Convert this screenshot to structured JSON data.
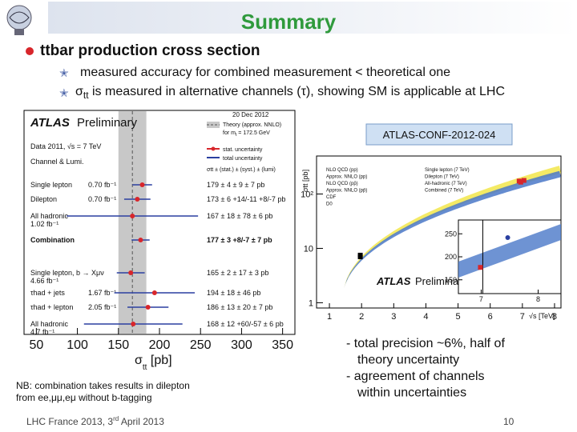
{
  "header": {
    "title": "Summary"
  },
  "bullet": {
    "text": "ttbar production cross section",
    "items": [
      {
        "text": "measured accuracy for combined measurement < theoretical one"
      },
      {
        "symbol": "σ",
        "sub": "tt",
        "text": " is measured in alternative channels (τ), showing SM is applicable at LHC"
      }
    ]
  },
  "atlas_plot": {
    "title": "ATLAS",
    "subtitle": "Preliminary",
    "date": "20 Dec 2012",
    "theory_label": "Theory (approx. NNLO)",
    "theory_mass": {
      "pre": "for m",
      "sub": "t",
      "post": " = 172.5 GeV"
    },
    "data_label": "Data 2011, √s = 7 TeV",
    "stat_label": "stat. uncertainty",
    "total_label": "total uncertainty",
    "column_header": "Channel & Lumi.",
    "result_header": "σtt ± (stat.) ± (syst.) ± (lumi)",
    "theory": {
      "value": 167,
      "error": 17
    },
    "rows": [
      {
        "channel": "Single lepton",
        "lumi": "0.70 fb⁻¹",
        "value": 179,
        "error": 12,
        "result": "179 ± 4 ± 9 ± 7 pb"
      },
      {
        "channel": "Dilepton",
        "lumi": "0.70 fb⁻¹",
        "value": 173,
        "error": 16,
        "result": "173 ± 6 +14/-11 +8/-7 pb"
      },
      {
        "channel": "All hadronic",
        "lumi": "1.02 fb⁻¹",
        "value": 167,
        "error": 80,
        "result": "167 ± 18 ± 78 ± 6 pb"
      },
      {
        "channel": "Combination",
        "lumi": "",
        "value": 177,
        "error": 11,
        "result": "177 ± 3 +8/-7 ± 7 pb"
      },
      {
        "channel": "Single lepton, b → Xμν",
        "lumi": "4.66 fb⁻¹",
        "value": 165,
        "error": 17,
        "result": "165 ± 2 ± 17 ± 3 pb"
      },
      {
        "channel": "τhad + jets",
        "lumi": "1.67 fb⁻¹",
        "value": 194,
        "error": 49,
        "result": "194 ± 18 ± 46 pb"
      },
      {
        "channel": "τhad + lepton",
        "lumi": "2.05 fb⁻¹",
        "value": 186,
        "error": 25,
        "result": "186 ± 13 ± 20 ± 7 pb"
      },
      {
        "channel": "All hadronic",
        "lumi": "4.7 fb⁻¹",
        "value": 168,
        "error": 60,
        "result": "168 ± 12 +60/-57 ± 6 pb"
      }
    ],
    "xlim": [
      35,
      365
    ],
    "xticks": [
      50,
      100,
      150,
      200,
      250,
      300,
      350
    ],
    "xlabel": {
      "symbol": "σ",
      "sub": "tt",
      "unit": " [pb]"
    }
  },
  "right_plot": {
    "tag": "ATLAS-CONF-2012-024",
    "ylabel": "σtt [pb]",
    "xlabel": "√s [TeV]",
    "xlim": [
      0.6,
      8.2
    ],
    "xticks": [
      1,
      2,
      3,
      4,
      5,
      6,
      7,
      8
    ],
    "ylim": [
      0.8,
      500
    ],
    "yticks": [
      {
        "value": 1,
        "label": "1"
      },
      {
        "value": 10,
        "label": "10"
      },
      {
        "value": 100,
        "label": "10²"
      }
    ],
    "legend": [
      "NLO QCD (pp)",
      "Approx. NNLO (pp)",
      "NLO QCD (pp̄)",
      "Approx. NNLO (pp̄)",
      "CDF",
      "D0"
    ],
    "legend2": [
      "Single lepton (7 TeV)",
      "Dilepton (7 TeV)",
      "All-hadronic (7 TeV)",
      "Combined (7 TeV)"
    ],
    "atlas": "ATLAS",
    "preliminary": "Preliminary",
    "inset": {
      "xlim": [
        6.6,
        8.4
      ],
      "xticks": [
        7,
        8
      ],
      "ylim": [
        120,
        280
      ],
      "yticks": [
        150,
        200,
        250
      ]
    }
  },
  "note": {
    "lines": [
      "NB: combination takes results in dilepton",
      "from ee,μμ,eμ without b-tagging"
    ]
  },
  "conclusions": [
    {
      "text": "- total precision ~6%, half of",
      "indent": false
    },
    {
      "text": "theory uncertainty",
      "indent": true
    },
    {
      "text": "- agreement of channels",
      "indent": false
    },
    {
      "text": "within uncertainties",
      "indent": true
    }
  ],
  "footer": {
    "pre": "LHC France 2013, 3",
    "sup": "rd",
    "post": " April 2013",
    "page": "10"
  }
}
